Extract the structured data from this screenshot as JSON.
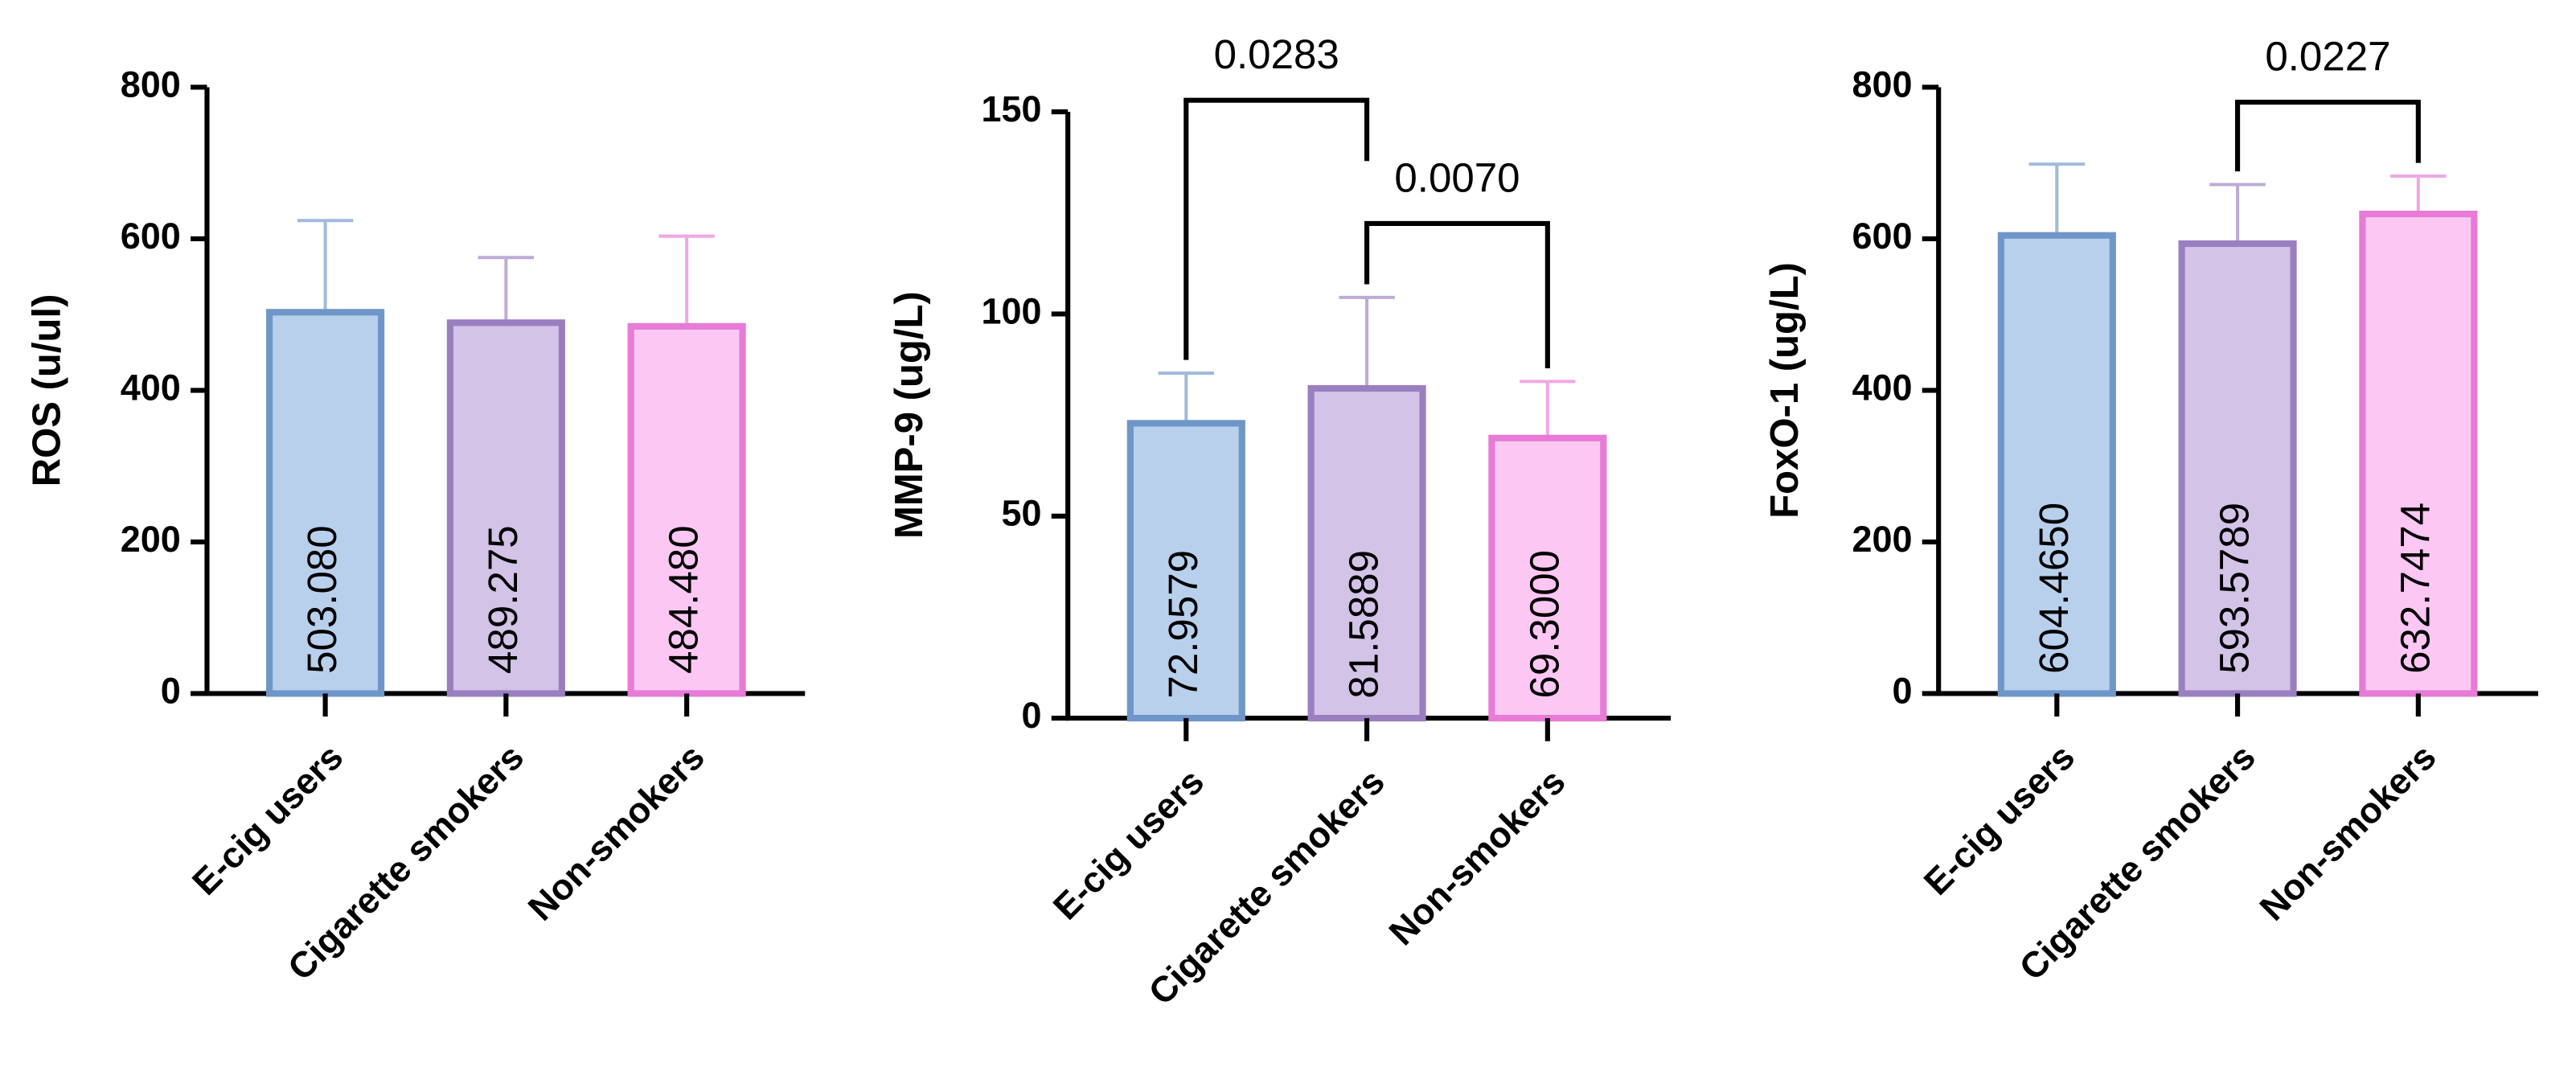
{
  "chart_data": [
    {
      "type": "bar",
      "ylabel": "ROS (u/ul)",
      "categories": [
        "E-cig users",
        "Cigarette smokers",
        "Non-smokers"
      ],
      "values": [
        503.08,
        489.275,
        484.48
      ],
      "value_labels": [
        "503.080",
        "489.275",
        "484.480"
      ],
      "errors": [
        121,
        86,
        119
      ],
      "colors": [
        "#b8d0ec",
        "#d3c3e7",
        "#fdc7f3"
      ],
      "edge_colors": [
        "#6f96c8",
        "#9a7fc0",
        "#e77bd6"
      ],
      "ylim": [
        0,
        800
      ],
      "yticks": [
        0,
        200,
        400,
        600,
        800
      ],
      "comparisons": []
    },
    {
      "type": "bar",
      "ylabel": "MMP-9 (ug/L)",
      "categories": [
        "E-cig users",
        "Cigarette smokers",
        "Non-smokers"
      ],
      "values": [
        72.9579,
        81.5889,
        69.3
      ],
      "value_labels": [
        "72.9579",
        "81.5889",
        "69.3000"
      ],
      "errors": [
        12.4,
        22.5,
        14
      ],
      "colors": [
        "#b8d0ec",
        "#d3c3e7",
        "#fdc7f3"
      ],
      "edge_colors": [
        "#6f96c8",
        "#9a7fc0",
        "#e77bd6"
      ],
      "ylim": [
        0,
        150
      ],
      "yticks": [
        0,
        50,
        100,
        150
      ],
      "comparisons": [
        {
          "label": "0.0283",
          "from": 0,
          "to": 1
        },
        {
          "label": "0.0070",
          "from": 1,
          "to": 2
        }
      ]
    },
    {
      "type": "bar",
      "ylabel": "FoxO-1 (ug/L)",
      "categories": [
        "E-cig users",
        "Cigarette smokers",
        "Non-smokers"
      ],
      "values": [
        604.465,
        593.5789,
        632.7474
      ],
      "value_labels": [
        "604.4650",
        "593.5789",
        "632.7474"
      ],
      "errors": [
        94,
        78,
        50
      ],
      "colors": [
        "#b8d0ec",
        "#d3c3e7",
        "#fdc7f3"
      ],
      "edge_colors": [
        "#6f96c8",
        "#9a7fc0",
        "#e77bd6"
      ],
      "ylim": [
        0,
        800
      ],
      "yticks": [
        0,
        200,
        400,
        600,
        800
      ],
      "comparisons": [
        {
          "label": "0.0227",
          "from": 1,
          "to": 2
        }
      ]
    }
  ]
}
